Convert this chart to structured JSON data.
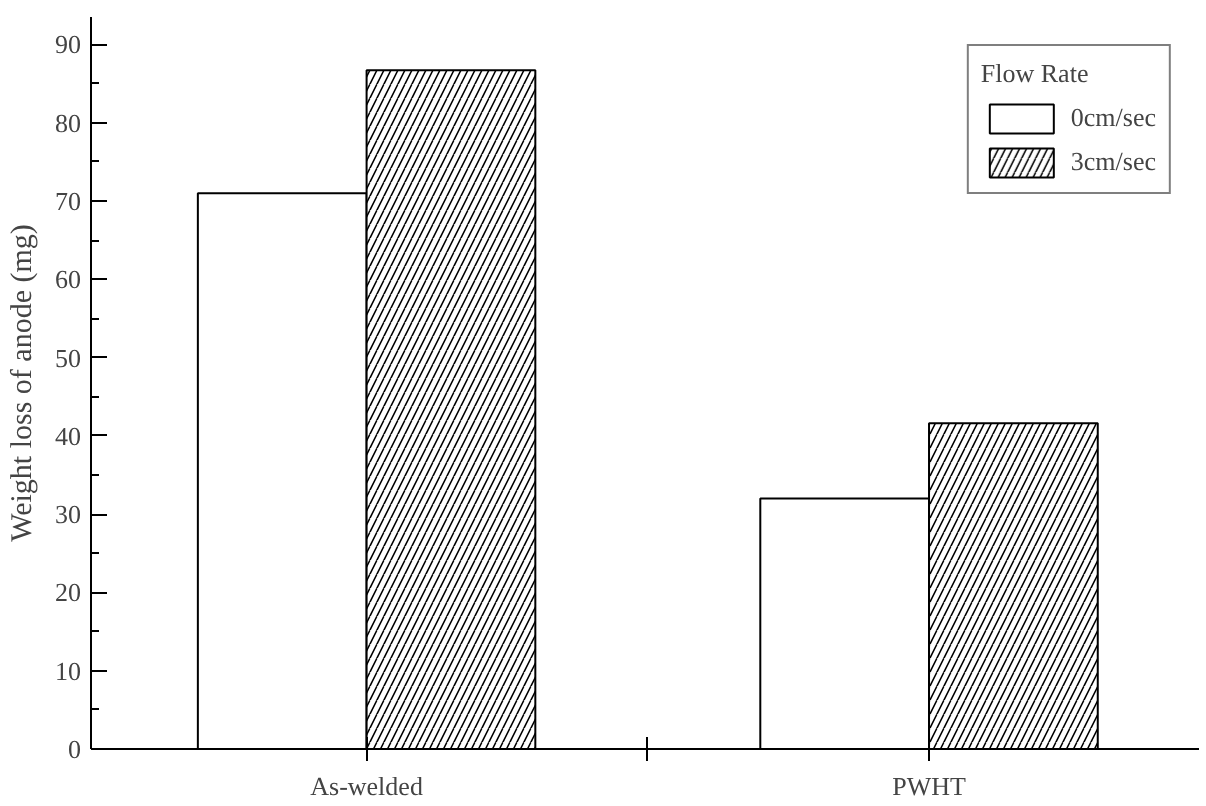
{
  "chart_data": {
    "type": "bar",
    "ylabel": "Weight loss of anode (mg)",
    "legend_title": "Flow Rate",
    "categories": [
      "As-welded",
      "PWHT"
    ],
    "series": [
      {
        "name": "0cm/sec",
        "color": "#ffffff",
        "values": [
          71,
          32
        ]
      },
      {
        "name": "3cm/sec",
        "color": "#ffffff",
        "values": [
          86.7,
          41.6
        ]
      }
    ],
    "ylim": [
      0,
      93.5
    ],
    "yticks": [
      0,
      10,
      20,
      30,
      40,
      50,
      60,
      70,
      80,
      90
    ],
    "grid": false,
    "legend": "top right"
  }
}
